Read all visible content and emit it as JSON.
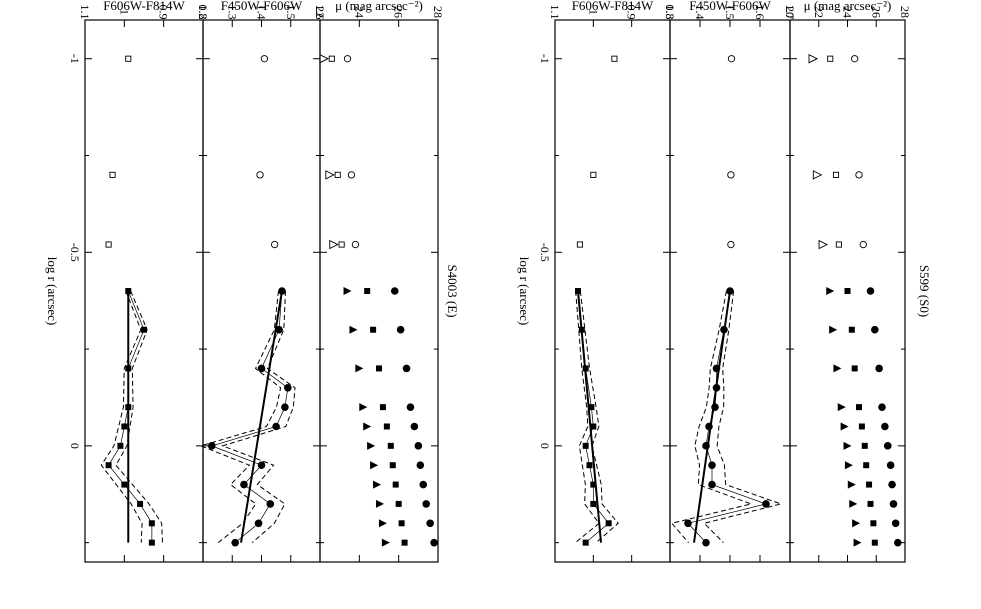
{
  "chart_data": [
    {
      "type": "scatter",
      "title": "S599 (S0)",
      "xlabel": "log r (arcsec)",
      "xlim": [
        -1.1,
        0.3
      ],
      "x_ticks": [
        "-1",
        "-0.5",
        "0"
      ],
      "panels": [
        {
          "ylabel": "μ (mag arcsec⁻²)",
          "ylim": [
            28,
            20
          ],
          "y_ticks": [
            "28",
            "26",
            "24",
            "22",
            "20"
          ],
          "series": [
            {
              "marker": "open-circle",
              "x": [
                -1.0,
                -0.7,
                -0.52
              ],
              "y": [
                24.5,
                24.8,
                25.1
              ]
            },
            {
              "marker": "open-square",
              "x": [
                -1.0,
                -0.7,
                -0.52
              ],
              "y": [
                22.8,
                23.2,
                23.4
              ]
            },
            {
              "marker": "open-triangle",
              "x": [
                -1.0,
                -0.7,
                -0.52
              ],
              "y": [
                21.6,
                21.9,
                22.3
              ]
            },
            {
              "marker": "filled-circle",
              "x": [
                -0.4,
                -0.3,
                -0.2,
                -0.1,
                -0.05,
                0.0,
                0.05,
                0.1,
                0.15,
                0.2,
                0.25
              ],
              "y": [
                25.6,
                25.9,
                26.2,
                26.4,
                26.6,
                26.8,
                27.0,
                27.1,
                27.2,
                27.35,
                27.5
              ]
            },
            {
              "marker": "filled-square",
              "x": [
                -0.4,
                -0.3,
                -0.2,
                -0.1,
                -0.05,
                0.0,
                0.05,
                0.1,
                0.15,
                0.2,
                0.25
              ],
              "y": [
                24.0,
                24.3,
                24.5,
                24.8,
                25.0,
                25.2,
                25.3,
                25.5,
                25.6,
                25.8,
                25.9
              ]
            },
            {
              "marker": "filled-triangle",
              "x": [
                -0.4,
                -0.3,
                -0.2,
                -0.1,
                -0.05,
                0.0,
                0.05,
                0.1,
                0.15,
                0.2,
                0.25
              ],
              "y": [
                22.8,
                23.0,
                23.3,
                23.6,
                23.8,
                24.0,
                24.1,
                24.3,
                24.4,
                24.6,
                24.7
              ]
            }
          ]
        },
        {
          "ylabel": "F450W-F606W",
          "ylim": [
            1.7,
            1.3
          ],
          "y_ticks": [
            "1.7",
            "1.6",
            "1.5",
            "1.4",
            "1.3"
          ],
          "series": [
            {
              "marker": "open-circle",
              "x": [
                -1.0,
                -0.7,
                -0.52
              ],
              "y": [
                1.505,
                1.503,
                1.503
              ]
            },
            {
              "marker": "filled-circle",
              "x": [
                -0.4,
                -0.3,
                -0.2,
                -0.15,
                -0.1,
                -0.05,
                0.0,
                0.05,
                0.1,
                0.15,
                0.2,
                0.25
              ],
              "y": [
                1.5,
                1.48,
                1.455,
                1.455,
                1.45,
                1.43,
                1.42,
                1.44,
                1.44,
                1.62,
                1.36,
                1.42
              ]
            },
            {
              "marker": "fit-line",
              "x": [
                -0.4,
                0.25
              ],
              "y": [
                1.5,
                1.38
              ]
            }
          ]
        },
        {
          "ylabel": "F606W-F814W",
          "ylim": [
            0.8,
            1.1
          ],
          "y_ticks": [
            "0.8",
            "0.9",
            "1",
            "1.1"
          ],
          "series": [
            {
              "marker": "open-square",
              "x": [
                -1.0,
                -0.7,
                -0.52
              ],
              "y": [
                0.945,
                1.0,
                1.035
              ]
            },
            {
              "marker": "filled-square",
              "x": [
                -0.4,
                -0.3,
                -0.2,
                -0.1,
                -0.05,
                0.0,
                0.05,
                0.1,
                0.15,
                0.2,
                0.25
              ],
              "y": [
                1.04,
                1.03,
                1.02,
                1.005,
                1.0,
                1.02,
                1.01,
                1.0,
                1.0,
                0.96,
                1.02
              ]
            },
            {
              "marker": "fit-line",
              "x": [
                -0.4,
                0.25
              ],
              "y": [
                1.04,
                0.98
              ]
            }
          ]
        }
      ]
    },
    {
      "type": "scatter",
      "title": "S4003 (E)",
      "xlabel": "log r (arcsec)",
      "xlim": [
        -1.1,
        0.3
      ],
      "x_ticks": [
        "-1",
        "-0.5",
        "0"
      ],
      "panels": [
        {
          "ylabel": "μ (mag arcsec⁻²)",
          "ylim": [
            28,
            22
          ],
          "y_ticks": [
            "28",
            "26",
            "24",
            "22"
          ],
          "series": [
            {
              "marker": "open-circle",
              "x": [
                -1.0,
                -0.7,
                -0.52
              ],
              "y": [
                23.4,
                23.6,
                23.8
              ]
            },
            {
              "marker": "open-square",
              "x": [
                -1.0,
                -0.7,
                -0.52
              ],
              "y": [
                22.6,
                22.9,
                23.1
              ]
            },
            {
              "marker": "open-triangle",
              "x": [
                -1.0,
                -0.7,
                -0.52
              ],
              "y": [
                22.2,
                22.5,
                22.7
              ]
            },
            {
              "marker": "filled-circle",
              "x": [
                -0.4,
                -0.3,
                -0.2,
                -0.1,
                -0.05,
                0.0,
                0.05,
                0.1,
                0.15,
                0.2,
                0.25
              ],
              "y": [
                25.8,
                26.1,
                26.4,
                26.6,
                26.8,
                27.0,
                27.1,
                27.25,
                27.4,
                27.6,
                27.8
              ]
            },
            {
              "marker": "filled-square",
              "x": [
                -0.4,
                -0.3,
                -0.2,
                -0.1,
                -0.05,
                0.0,
                0.05,
                0.1,
                0.15,
                0.2,
                0.25
              ],
              "y": [
                24.4,
                24.7,
                25.0,
                25.2,
                25.4,
                25.6,
                25.7,
                25.85,
                26.0,
                26.15,
                26.3
              ]
            },
            {
              "marker": "filled-triangle",
              "x": [
                -0.4,
                -0.3,
                -0.2,
                -0.1,
                -0.05,
                0.0,
                0.05,
                0.1,
                0.15,
                0.2,
                0.25
              ],
              "y": [
                23.4,
                23.7,
                24.0,
                24.2,
                24.4,
                24.6,
                24.75,
                24.9,
                25.05,
                25.2,
                25.35
              ]
            }
          ]
        },
        {
          "ylabel": "F450W-F606W",
          "ylim": [
            1.6,
            1.2
          ],
          "y_ticks": [
            "1.6",
            "1.5",
            "1.4",
            "1.3",
            "1.2"
          ],
          "series": [
            {
              "marker": "open-circle",
              "x": [
                -1.0,
                -0.7,
                -0.52
              ],
              "y": [
                1.41,
                1.395,
                1.445
              ]
            },
            {
              "marker": "filled-circle",
              "x": [
                -0.4,
                -0.3,
                -0.2,
                -0.15,
                -0.1,
                -0.05,
                0.0,
                0.05,
                0.1,
                0.15,
                0.2,
                0.25
              ],
              "y": [
                1.47,
                1.46,
                1.4,
                1.49,
                1.48,
                1.45,
                1.23,
                1.4,
                1.34,
                1.43,
                1.39,
                1.31
              ]
            },
            {
              "marker": "fit-line",
              "x": [
                -0.4,
                0.25
              ],
              "y": [
                1.47,
                1.33
              ]
            }
          ]
        },
        {
          "ylabel": "F606W-F814W",
          "ylim": [
            0.8,
            1.1
          ],
          "y_ticks": [
            "0.8",
            "0.9",
            "1",
            "1.1"
          ],
          "series": [
            {
              "marker": "open-square",
              "x": [
                -1.0,
                -0.7,
                -0.52
              ],
              "y": [
                0.99,
                1.03,
                1.04
              ]
            },
            {
              "marker": "filled-square",
              "x": [
                -0.4,
                -0.3,
                -0.2,
                -0.1,
                -0.05,
                0.0,
                0.05,
                0.1,
                0.15,
                0.2,
                0.25
              ],
              "y": [
                0.99,
                0.95,
                0.99,
                0.99,
                1.0,
                1.01,
                1.04,
                1.0,
                0.96,
                0.93,
                0.93
              ]
            },
            {
              "marker": "fit-line",
              "x": [
                -0.4,
                0.25
              ],
              "y": [
                0.99,
                0.99
              ]
            }
          ]
        }
      ]
    }
  ]
}
